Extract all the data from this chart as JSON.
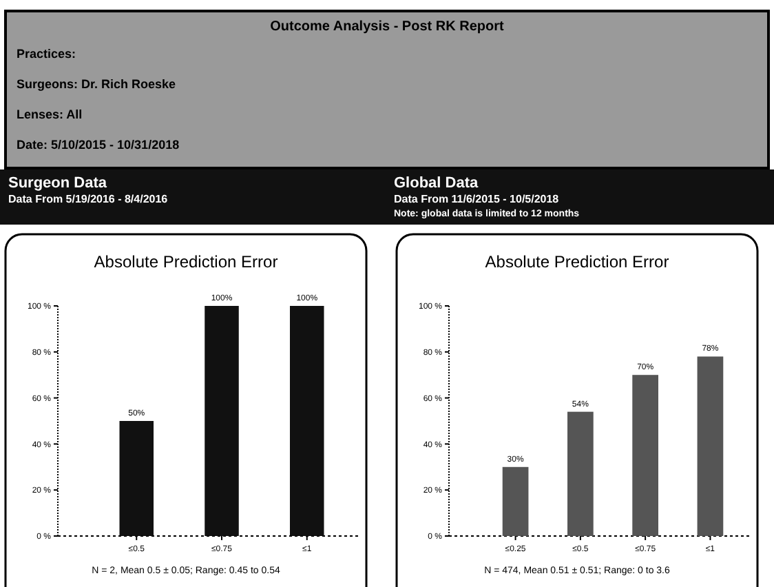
{
  "chart_data": [
    {
      "type": "other",
      "title": "Outcome Analysis - Post RK Report",
      "annotations": [
        "Practices:",
        "Surgeons:  Dr. Rich Roeske",
        "Lenses:  All",
        "Date:  5/10/2015 - 10/31/2018",
        "Surgeon Data",
        "Data From 5/19/2016 - 8/4/2016",
        "Global Data",
        "Data From 11/6/2015 - 10/5/2018",
        "Note: global data is limited to 12 months"
      ]
    },
    {
      "type": "bar",
      "title": "Absolute Prediction Error",
      "categories": [
        "≤0.5",
        "≤0.75",
        "≤1"
      ],
      "values": [
        50,
        100,
        100
      ],
      "color": "#111111",
      "ylim": [
        0,
        100
      ],
      "yticks": [
        {
          "value": 0,
          "label": "0 %"
        },
        {
          "value": 20,
          "label": "20 %"
        },
        {
          "value": 40,
          "label": "40 %"
        },
        {
          "value": 60,
          "label": "60 %"
        },
        {
          "value": 80,
          "label": "80 %"
        },
        {
          "value": 100,
          "label": "100 %"
        }
      ],
      "value_labels": [
        "50%",
        "100%",
        "100%"
      ],
      "annotations": [
        "N = 2, Mean 0.5 ± 0.05; Range: 0.45 to 0.54"
      ]
    },
    {
      "type": "bar",
      "title": "Absolute Prediction Error",
      "categories": [
        "≤0.25",
        "≤0.5",
        "≤0.75",
        "≤1"
      ],
      "values": [
        30,
        54,
        70,
        78
      ],
      "color": "#555555",
      "ylim": [
        0,
        100
      ],
      "yticks": [
        {
          "value": 0,
          "label": "0 %"
        },
        {
          "value": 20,
          "label": "20 %"
        },
        {
          "value": 40,
          "label": "40 %"
        },
        {
          "value": 60,
          "label": "60 %"
        },
        {
          "value": 80,
          "label": "80 %"
        },
        {
          "value": 100,
          "label": "100 %"
        }
      ],
      "value_labels": [
        "30%",
        "54%",
        "70%",
        "78%"
      ],
      "annotations": [
        "N = 474, Mean 0.51 ± 0.51; Range: 0 to 3.6"
      ]
    }
  ]
}
